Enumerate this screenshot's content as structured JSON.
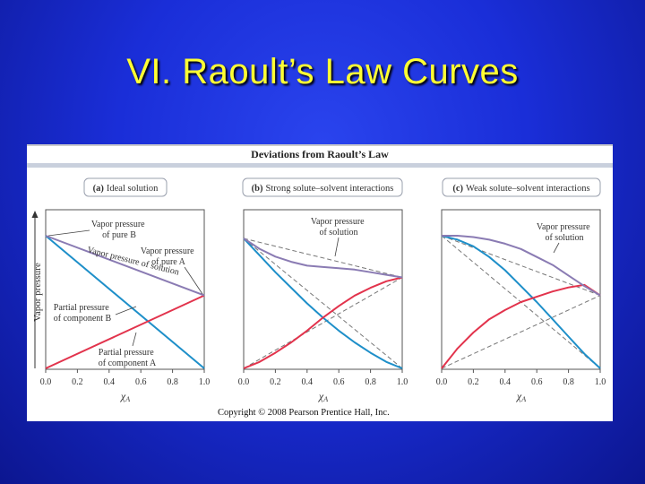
{
  "slide": {
    "title": "VI. Raoult’s Law Curves"
  },
  "figure": {
    "title": "Deviations from Raoult’s Law",
    "copyright": "Copyright © 2008 Pearson Prentice Hall, Inc.",
    "y_axis_label": "Vapor pressure",
    "x_axis_label_main": "χ",
    "x_axis_label_sub": "A",
    "colors": {
      "A": "#e2334c",
      "B": "#1e8fc9",
      "total": "#8a7bb3",
      "dash": "#777777",
      "header_bar": "#c9d0dd"
    }
  },
  "chart_data": [
    {
      "type": "line",
      "panel_tag": "(a)",
      "panel_title": "Ideal solution",
      "xlim": [
        0,
        1.0
      ],
      "x_ticks": [
        "0.0",
        "0.2",
        "0.4",
        "0.6",
        "0.8",
        "1.0"
      ],
      "series": [
        {
          "key": "B",
          "x": [
            0,
            1.0
          ],
          "y": [
            1.0,
            0.0
          ]
        },
        {
          "key": "A",
          "x": [
            0,
            1.0
          ],
          "y": [
            0.0,
            0.55
          ]
        },
        {
          "key": "total",
          "x": [
            0,
            1.0
          ],
          "y": [
            1.0,
            0.55
          ]
        }
      ],
      "annotations": [
        {
          "lines": [
            "Vapor pressure",
            "of pure B"
          ]
        },
        {
          "lines": [
            "Vapor pressure",
            "of pure A"
          ]
        },
        {
          "lines": [
            "Vapor pressure of solution"
          ]
        },
        {
          "lines": [
            "Partial pressure",
            "of component B"
          ]
        },
        {
          "lines": [
            "Partial pressure",
            "of component A"
          ]
        }
      ]
    },
    {
      "type": "line",
      "panel_tag": "(b)",
      "panel_title": "Strong solute–solvent interactions",
      "xlim": [
        0,
        1.0
      ],
      "x_ticks": [
        "0.0",
        "0.2",
        "0.4",
        "0.6",
        "0.8",
        "1.0"
      ],
      "series": [
        {
          "key": "B",
          "x": [
            0,
            0.1,
            0.2,
            0.3,
            0.4,
            0.5,
            0.6,
            0.7,
            0.8,
            0.9,
            1.0
          ],
          "y": [
            1.0,
            0.87,
            0.74,
            0.62,
            0.5,
            0.39,
            0.29,
            0.2,
            0.12,
            0.05,
            0.0
          ]
        },
        {
          "key": "A",
          "x": [
            0,
            0.1,
            0.2,
            0.3,
            0.4,
            0.5,
            0.6,
            0.7,
            0.8,
            0.9,
            1.0
          ],
          "y": [
            0.0,
            0.05,
            0.12,
            0.2,
            0.29,
            0.39,
            0.48,
            0.56,
            0.62,
            0.67,
            0.7
          ]
        },
        {
          "key": "total",
          "x": [
            0,
            0.1,
            0.2,
            0.3,
            0.4,
            0.5,
            0.6,
            0.7,
            0.8,
            0.9,
            1.0
          ],
          "y": [
            1.0,
            0.92,
            0.86,
            0.82,
            0.79,
            0.78,
            0.77,
            0.76,
            0.74,
            0.72,
            0.7
          ]
        },
        {
          "key": "B_ideal",
          "dashed": true,
          "x": [
            0,
            1.0
          ],
          "y": [
            1.0,
            0.0
          ]
        },
        {
          "key": "A_ideal",
          "dashed": true,
          "x": [
            0,
            1.0
          ],
          "y": [
            0.0,
            0.7
          ]
        },
        {
          "key": "total_ideal",
          "dashed": true,
          "x": [
            0,
            1.0
          ],
          "y": [
            1.0,
            0.7
          ]
        }
      ],
      "annotations": [
        {
          "lines": [
            "Vapor pressure",
            "of solution"
          ]
        }
      ]
    },
    {
      "type": "line",
      "panel_tag": "(c)",
      "panel_title": "Weak solute–solvent interactions",
      "xlim": [
        0,
        1.0
      ],
      "x_ticks": [
        "0.0",
        "0.2",
        "0.4",
        "0.6",
        "0.8",
        "1.0"
      ],
      "series": [
        {
          "key": "B",
          "x": [
            0,
            0.1,
            0.2,
            0.3,
            0.4,
            0.5,
            0.6,
            0.7,
            0.8,
            0.9,
            1.0
          ],
          "y": [
            1.0,
            0.97,
            0.92,
            0.84,
            0.74,
            0.62,
            0.5,
            0.37,
            0.24,
            0.11,
            0.0
          ]
        },
        {
          "key": "A",
          "x": [
            0,
            0.1,
            0.2,
            0.3,
            0.4,
            0.5,
            0.6,
            0.7,
            0.8,
            0.9,
            1.0
          ],
          "y": [
            0.0,
            0.15,
            0.27,
            0.37,
            0.44,
            0.5,
            0.54,
            0.58,
            0.61,
            0.63,
            0.55
          ]
        },
        {
          "key": "total",
          "x": [
            0,
            0.1,
            0.2,
            0.3,
            0.4,
            0.5,
            0.6,
            0.7,
            0.8,
            0.9,
            1.0
          ],
          "y": [
            1.0,
            1.0,
            0.99,
            0.97,
            0.94,
            0.9,
            0.84,
            0.78,
            0.7,
            0.62,
            0.55
          ]
        },
        {
          "key": "B_ideal",
          "dashed": true,
          "x": [
            0,
            1.0
          ],
          "y": [
            1.0,
            0.0
          ]
        },
        {
          "key": "A_ideal",
          "dashed": true,
          "x": [
            0,
            1.0
          ],
          "y": [
            0.0,
            0.55
          ]
        },
        {
          "key": "total_ideal",
          "dashed": true,
          "x": [
            0,
            1.0
          ],
          "y": [
            1.0,
            0.55
          ]
        }
      ],
      "annotations": [
        {
          "lines": [
            "Vapor pressure",
            "of solution"
          ]
        }
      ]
    }
  ]
}
